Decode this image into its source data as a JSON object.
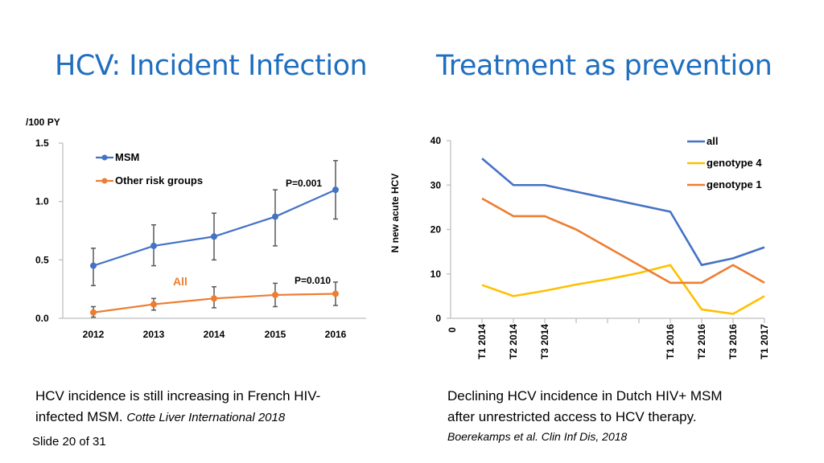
{
  "titles": {
    "left": "HCV:  Incident Infection",
    "right": "Treatment as prevention"
  },
  "chart_data": [
    {
      "type": "line",
      "unit_label": "/100 PY",
      "x": [
        "2012",
        "2013",
        "2014",
        "2015",
        "2016"
      ],
      "ylim": [
        0,
        1.5
      ],
      "y_ticks": [
        "0.0",
        "0.5",
        "1.0",
        "1.5"
      ],
      "series": [
        {
          "name": "MSM",
          "color": "#4472c4",
          "values": [
            0.45,
            0.62,
            0.7,
            0.87,
            1.1
          ],
          "err_low": [
            0.28,
            0.45,
            0.5,
            0.62,
            0.85
          ],
          "err_high": [
            0.6,
            0.8,
            0.9,
            1.1,
            1.35
          ]
        },
        {
          "name": "Other risk groups",
          "color": "#ed7d31",
          "values": [
            0.05,
            0.12,
            0.17,
            0.2,
            0.21
          ],
          "err_low": [
            0.01,
            0.07,
            0.09,
            0.1,
            0.11
          ],
          "err_high": [
            0.1,
            0.17,
            0.27,
            0.3,
            0.31
          ]
        }
      ],
      "annotations": {
        "p_msm": "P=0.001",
        "p_all": "P=0.010",
        "all_label": "All"
      }
    },
    {
      "type": "line",
      "ylabel": "N new acute HCV",
      "ylim": [
        0,
        40
      ],
      "y_ticks": [
        "0",
        "10",
        "20",
        "30",
        "40"
      ],
      "x_zero_label": "0",
      "x_labels": [
        "T1 2014",
        "T2 2014",
        "T3 2014",
        "",
        "",
        "",
        "T1 2016",
        "T2 2016",
        "T3 2016",
        "T1 2017"
      ],
      "series": [
        {
          "name": "all",
          "color": "#4472c4",
          "values": [
            36,
            30,
            30,
            28.5,
            27,
            25.5,
            24,
            12,
            13.5,
            16
          ]
        },
        {
          "name": "genotype 4",
          "color": "#ffc000",
          "values": [
            7.5,
            5,
            6.2,
            7.6,
            8.8,
            10.2,
            12,
            2,
            1,
            5
          ]
        },
        {
          "name": "genotype 1",
          "color": "#ed7d31",
          "values": [
            27,
            23,
            23,
            20,
            16,
            12,
            8,
            8,
            12,
            8
          ]
        }
      ]
    }
  ],
  "captions": {
    "left_line1": "HCV incidence is still increasing in French HIV-",
    "left_line2": "infected MSM.",
    "left_cite": "Cotte Liver International 2018",
    "right_line1": "Declining HCV incidence in Dutch HIV+ MSM",
    "right_line2": "after unrestricted access to HCV therapy.",
    "right_cite": "Boerekamps et al. Clin Inf Dis, 2018"
  },
  "footer": {
    "slide": "Slide 20 of 31"
  }
}
